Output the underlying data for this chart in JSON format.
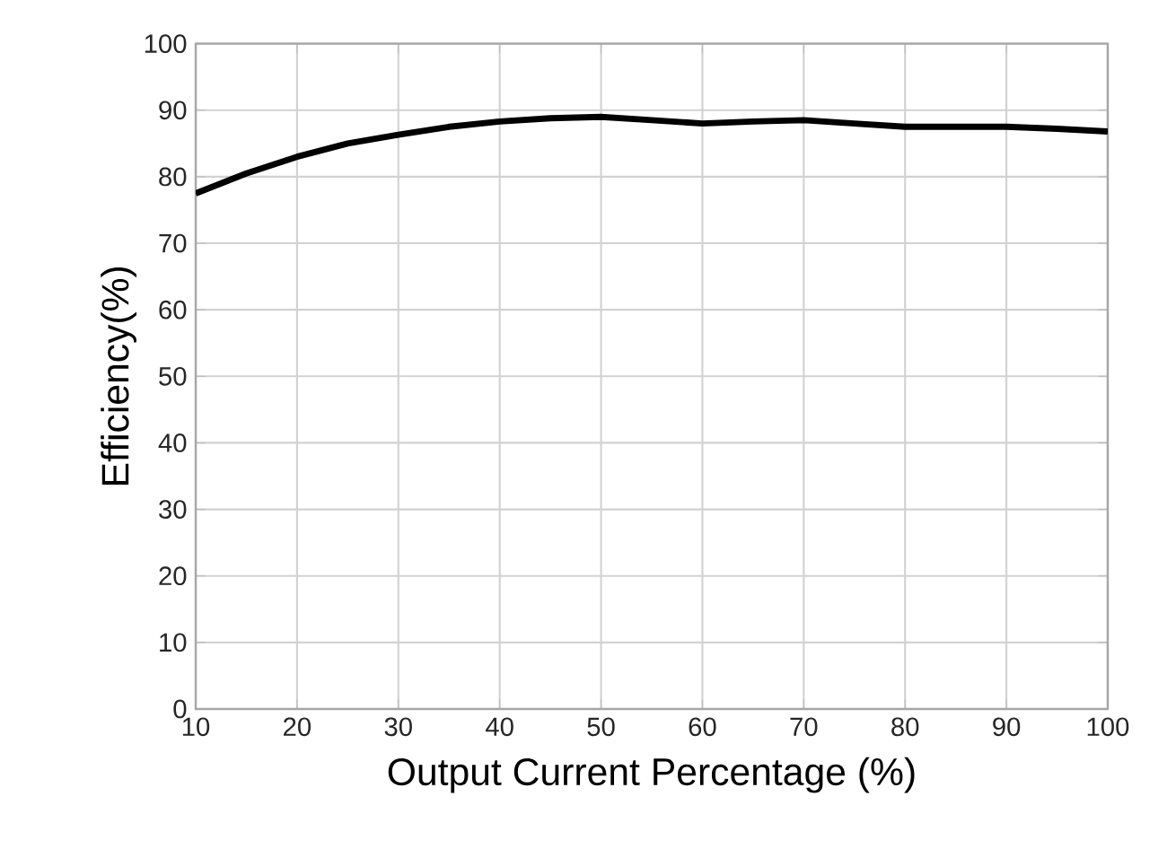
{
  "chart_data": {
    "type": "line",
    "xlabel": "Output Current Percentage (%)",
    "ylabel": "Efficiency(%)",
    "x": [
      10,
      15,
      20,
      25,
      30,
      35,
      40,
      45,
      50,
      55,
      60,
      65,
      70,
      75,
      80,
      85,
      90,
      95,
      100
    ],
    "series": [
      {
        "color": "#000000",
        "values": [
          77.5,
          80.5,
          83,
          85,
          86.3,
          87.5,
          88.3,
          88.8,
          89,
          88.5,
          88,
          88.3,
          88.5,
          88,
          87.5,
          87.5,
          87.5,
          87.2,
          86.8
        ]
      }
    ],
    "xlim": [
      10,
      100
    ],
    "ylim": [
      0,
      100
    ],
    "xticks": [
      10,
      20,
      30,
      40,
      50,
      60,
      70,
      80,
      90,
      100
    ],
    "yticks": [
      0,
      10,
      20,
      30,
      40,
      50,
      60,
      70,
      80,
      90,
      100
    ],
    "grid": true
  }
}
